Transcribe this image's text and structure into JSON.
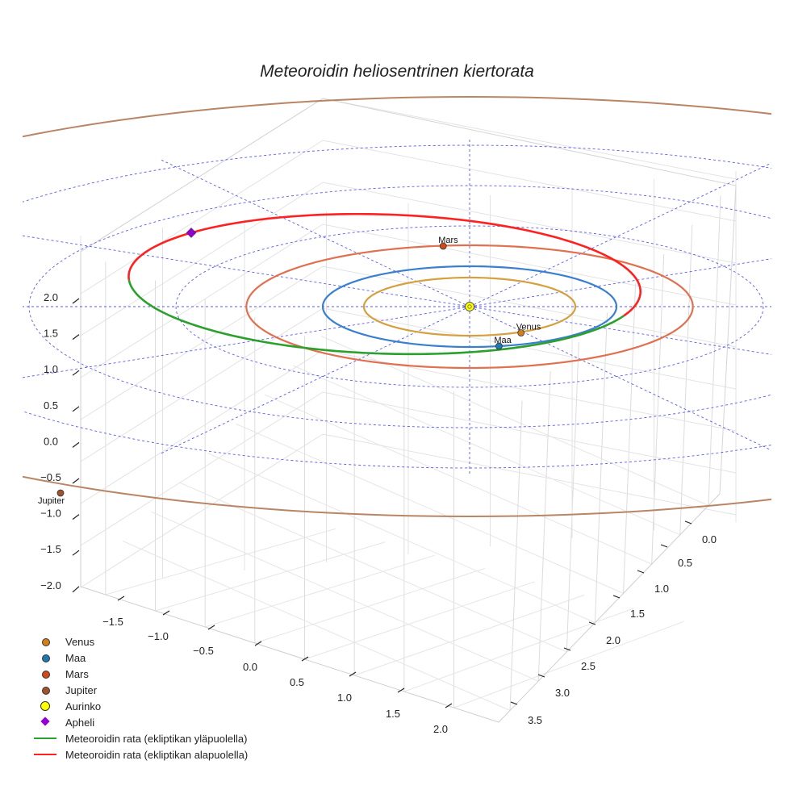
{
  "chart_data": {
    "type": "scatter3d",
    "title": "Meteoroidin heliosentrinen kiertorata",
    "axes": {
      "x": {
        "ticks": [
          -1.5,
          -1.0,
          -0.5,
          0.0,
          0.5,
          1.0,
          1.5,
          2.0
        ]
      },
      "y": {
        "ticks": [
          0.0,
          0.5,
          1.0,
          1.5,
          2.0,
          2.5,
          3.0,
          3.5
        ]
      },
      "z": {
        "ticks": [
          -2.0,
          -1.5,
          -1.0,
          -0.5,
          0.0,
          0.5,
          1.0,
          1.5,
          2.0
        ]
      }
    },
    "tick_labels": {
      "x": [
        "−1.5",
        "−1.0",
        "−0.5",
        "0.0",
        "0.5",
        "1.0",
        "1.5",
        "2.0"
      ],
      "y": [
        "0.0",
        "0.5",
        "1.0",
        "1.5",
        "2.0",
        "2.5",
        "3.0",
        "3.5"
      ],
      "z": [
        "−2.0",
        "−1.5",
        "−1.0",
        "−0.5",
        "0.0",
        "0.5",
        "1.0",
        "1.5",
        "2.0"
      ]
    },
    "planet_orbits": [
      {
        "name": "Venus",
        "radius_au": 0.72,
        "color": "#d4a040"
      },
      {
        "name": "Maa",
        "radius_au": 1.0,
        "color": "#3a7fcf"
      },
      {
        "name": "Mars",
        "radius_au": 1.52,
        "color": "#e07050"
      },
      {
        "name": "Jupiter",
        "radius_au": 5.2,
        "color": "#b88565"
      }
    ],
    "reference_rings_au": [
      1,
      2,
      3,
      4
    ],
    "planets": [
      {
        "name": "Venus",
        "label": "Venus",
        "x": 0.35,
        "y": 0.65,
        "z": 0.0,
        "color": "#d4801a"
      },
      {
        "name": "Maa",
        "label": "Maa",
        "x": 0.2,
        "y": 0.98,
        "z": 0.0,
        "color": "#1f77b4"
      },
      {
        "name": "Mars",
        "label": "Mars",
        "x": -0.18,
        "y": -1.5,
        "z": 0.0,
        "color": "#d04a1a"
      },
      {
        "name": "Jupiter",
        "label": "Jupiter",
        "x": -4.9,
        "y": -1.75,
        "z": 0.0,
        "color": "#a0522d"
      }
    ],
    "sun": {
      "name": "Aurinko",
      "x": 0.0,
      "y": 0.0,
      "z": 0.0,
      "color": "#ffff00"
    },
    "meteoroid_orbit": {
      "semi_major_axis_au": 1.83,
      "eccentricity": 0.44,
      "perihelion_angle_deg": 44,
      "above_ecliptic": {
        "label": "Meteoroidin rata (ekliptikan yläpuolella)",
        "color": "#2ca02c",
        "from_true_anomaly_deg": -152,
        "to_true_anomaly_deg": 32
      },
      "below_ecliptic": {
        "label": "Meteoroidin rata (ekliptikan alapuolella)",
        "color": "#ff2020",
        "from_true_anomaly_deg": 32,
        "to_true_anomaly_deg": 208
      }
    },
    "aphelion": {
      "name": "Apheli",
      "distance_au": 2.64,
      "color": "#9400d3"
    }
  },
  "legend": [
    {
      "label": "Venus",
      "kind": "dot",
      "color": "#d4801a"
    },
    {
      "label": "Maa",
      "kind": "dot",
      "color": "#1f77b4"
    },
    {
      "label": "Mars",
      "kind": "dot",
      "color": "#d04a1a"
    },
    {
      "label": "Jupiter",
      "kind": "dot",
      "color": "#a0522d"
    },
    {
      "label": "Aurinko",
      "kind": "sun",
      "color": "#ffff00"
    },
    {
      "label": "Apheli",
      "kind": "diamond",
      "color": "#9400d3"
    },
    {
      "label": "Meteoroidin rata (ekliptikan yläpuolella)",
      "kind": "line",
      "color": "#2ca02c"
    },
    {
      "label": "Meteoroidin rata (ekliptikan alapuolella)",
      "kind": "line",
      "color": "#ff2020"
    }
  ]
}
